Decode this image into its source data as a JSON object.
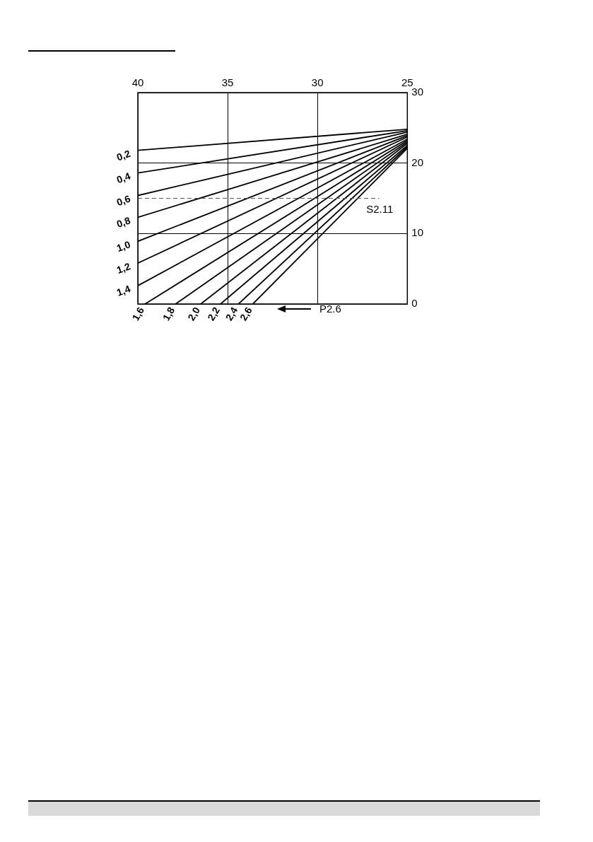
{
  "chart_data": {
    "type": "line",
    "xlim": [
      40,
      25
    ],
    "xticks": [
      40,
      35,
      30,
      25
    ],
    "ylim": [
      0,
      30
    ],
    "yticks": [
      0,
      10,
      20,
      30
    ],
    "grid": true,
    "marker": "none",
    "line_style": "solid",
    "series": [
      {
        "name": "0,2",
        "color": "#000000",
        "x": [
          40,
          25
        ],
        "values": [
          21.8,
          24.8
        ]
      },
      {
        "name": "0,4",
        "color": "#000000",
        "x": [
          40,
          25
        ],
        "values": [
          18.6,
          24.6
        ]
      },
      {
        "name": "0,6",
        "color": "#000000",
        "x": [
          40,
          25
        ],
        "values": [
          15.4,
          24.4
        ]
      },
      {
        "name": "0,8",
        "color": "#000000",
        "x": [
          40,
          25
        ],
        "values": [
          12.3,
          24.1
        ]
      },
      {
        "name": "1,0",
        "color": "#000000",
        "x": [
          40,
          25
        ],
        "values": [
          8.9,
          23.9
        ]
      },
      {
        "name": "1,2",
        "color": "#000000",
        "x": [
          40,
          25
        ],
        "values": [
          5.8,
          23.7
        ]
      },
      {
        "name": "1,4",
        "color": "#000000",
        "x": [
          40,
          25
        ],
        "values": [
          2.6,
          23.4
        ]
      },
      {
        "name": "1,6",
        "color": "#000000",
        "x": [
          39.6,
          25
        ],
        "values": [
          0,
          23.2
        ]
      },
      {
        "name": "1,8",
        "color": "#000000",
        "x": [
          37.9,
          25
        ],
        "values": [
          0,
          23
        ]
      },
      {
        "name": "2,0",
        "color": "#000000",
        "x": [
          36.5,
          25
        ],
        "values": [
          0,
          22.8
        ]
      },
      {
        "name": "2,2",
        "color": "#000000",
        "x": [
          35.4,
          25
        ],
        "values": [
          0,
          22.5
        ]
      },
      {
        "name": "2,4",
        "color": "#000000",
        "x": [
          34.4,
          25
        ],
        "values": [
          0,
          22.3
        ]
      },
      {
        "name": "2,6",
        "color": "#000000",
        "x": [
          33.6,
          25
        ],
        "values": [
          0,
          22.1
        ]
      }
    ],
    "ref_lines": [
      {
        "axis": "y",
        "value": 15,
        "label": "S2.11",
        "color": "#555555",
        "line_style": "dashed"
      }
    ],
    "annotations": [
      "P2.6"
    ]
  }
}
